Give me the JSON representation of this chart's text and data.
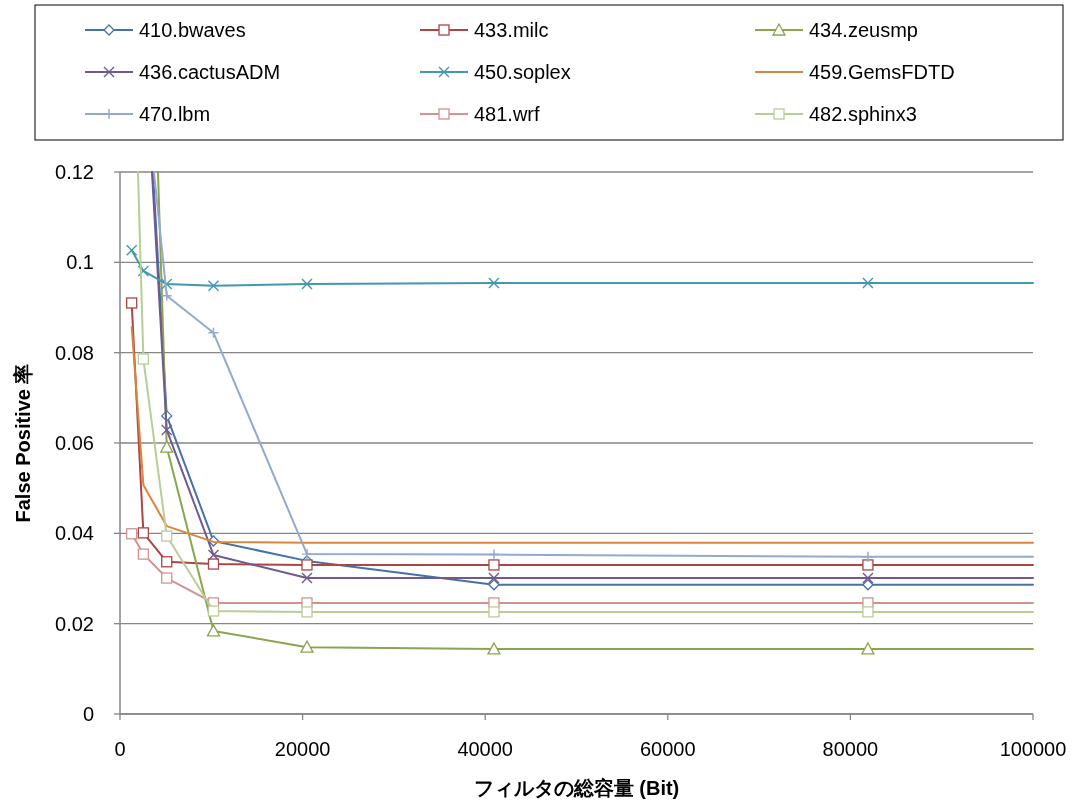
{
  "chart_data": {
    "type": "line",
    "xlabel": "フィルタの総容量 (Bit)",
    "ylabel": "False Positive 率",
    "xlim": [
      0,
      100000
    ],
    "xticks": [
      0,
      20000,
      40000,
      60000,
      80000,
      100000
    ],
    "ylim": [
      0,
      0.12
    ],
    "yticks": [
      0,
      0.02,
      0.04,
      0.06,
      0.08,
      0.1,
      0.12
    ],
    "grid": "y",
    "legend": "top",
    "line_style": "solid",
    "series": [
      {
        "name": "410.bwaves",
        "color": "#4572a7",
        "marker": "diamond",
        "x": [
          3610,
          5120,
          10240,
          20480,
          40960,
          81920,
          100000
        ],
        "values": [
          0.12,
          0.066,
          0.0383,
          0.0339,
          0.0286,
          0.0286,
          0.0286
        ]
      },
      {
        "name": "433.milc",
        "color": "#aa4643",
        "marker": "square",
        "x": [
          1280,
          2560,
          5120,
          10240,
          20480,
          40960,
          81920,
          100000
        ],
        "values": [
          0.091,
          0.0401,
          0.0337,
          0.0332,
          0.033,
          0.033,
          0.033,
          0.033
        ]
      },
      {
        "name": "434.zeusmp",
        "color": "#89a54e",
        "marker": "triangle",
        "x": [
          4160,
          5120,
          10240,
          20480,
          40960,
          81920,
          100000
        ],
        "values": [
          0.12,
          0.0591,
          0.0184,
          0.0148,
          0.0144,
          0.0144,
          0.0144
        ]
      },
      {
        "name": "436.cactusADM",
        "color": "#71588f",
        "marker": "cross",
        "x": [
          3500,
          5120,
          10240,
          20480,
          40960,
          81920,
          100000
        ],
        "values": [
          0.12,
          0.0629,
          0.0352,
          0.0301,
          0.0301,
          0.0301,
          0.0301
        ]
      },
      {
        "name": "450.soplex",
        "color": "#4198af",
        "marker": "cross",
        "x": [
          1280,
          2560,
          5120,
          10240,
          20480,
          40960,
          81920,
          100000
        ],
        "values": [
          0.1027,
          0.0981,
          0.0952,
          0.0948,
          0.0952,
          0.0954,
          0.0954,
          0.0954
        ]
      },
      {
        "name": "459.GemsFDTD",
        "color": "#db843d",
        "marker": "none",
        "x": [
          1280,
          2560,
          5120,
          10240,
          20480,
          40960,
          81920,
          100000
        ],
        "values": [
          0.0857,
          0.0507,
          0.0416,
          0.0381,
          0.0379,
          0.0379,
          0.0379,
          0.0379
        ]
      },
      {
        "name": "470.lbm",
        "color": "#93a9cf",
        "marker": "plus",
        "x": [
          3720,
          5120,
          10240,
          20480,
          40960,
          81920,
          100000
        ],
        "values": [
          0.12,
          0.0926,
          0.0844,
          0.0354,
          0.0353,
          0.0348,
          0.0348
        ]
      },
      {
        "name": "481.wrf",
        "color": "#d19392",
        "marker": "square",
        "x": [
          1280,
          2560,
          5120,
          10240,
          20480,
          40960,
          81920,
          100000
        ],
        "values": [
          0.0399,
          0.0354,
          0.0301,
          0.0246,
          0.0246,
          0.0246,
          0.0246,
          0.0246
        ]
      },
      {
        "name": "482.sphinx3",
        "color": "#b9cd96",
        "marker": "square",
        "x": [
          1970,
          2560,
          5120,
          10240,
          20480,
          40960,
          81920,
          100000
        ],
        "values": [
          0.12,
          0.0786,
          0.0394,
          0.0228,
          0.0226,
          0.0226,
          0.0226,
          0.0226
        ]
      }
    ]
  }
}
